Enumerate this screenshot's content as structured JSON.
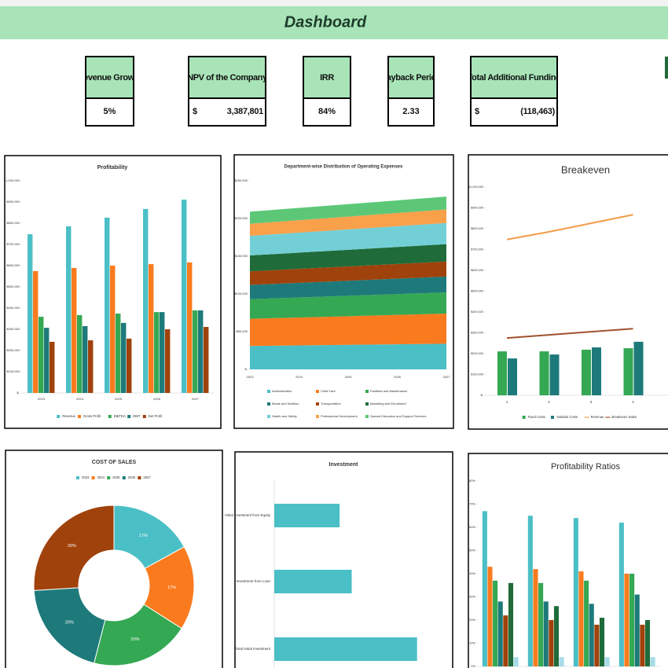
{
  "header": {
    "title": "Dashboard"
  },
  "kpis": [
    {
      "label": "Revenue Growth",
      "value": "5%"
    },
    {
      "label": "NPV of the Company",
      "currency": "$",
      "value": "3,387,801"
    },
    {
      "label": "IRR",
      "value": "84%"
    },
    {
      "label": "Payback Period",
      "value": "2.33"
    },
    {
      "label": "Total Additional Funding",
      "currency": "$",
      "value": "(118,463)"
    }
  ],
  "chart_data": [
    {
      "type": "bar",
      "title": "Profitability",
      "categories": [
        "2023",
        "2024",
        "2025",
        "2026",
        "2027"
      ],
      "series": [
        {
          "name": "Revenue",
          "color": "#4bbfc6",
          "values": [
            748000,
            785000,
            826000,
            867000,
            911000
          ]
        },
        {
          "name": "Gross Profit",
          "color": "#f97b1e",
          "values": [
            574000,
            589000,
            600000,
            607000,
            615000
          ]
        },
        {
          "name": "EBITDA",
          "color": "#34a853",
          "values": [
            359000,
            367000,
            374000,
            381000,
            389000
          ]
        },
        {
          "name": "EBIT",
          "color": "#1e7a7a",
          "values": [
            307000,
            315000,
            330000,
            381000,
            389000
          ]
        },
        {
          "name": "Net Profit",
          "color": "#a0420c",
          "values": [
            241000,
            248000,
            256000,
            300000,
            311000
          ]
        }
      ],
      "ylim": [
        0,
        1000000
      ],
      "yticks": [
        {
          "value": 0,
          "label": "$-"
        },
        {
          "value": 100000,
          "label": "$100,000"
        },
        {
          "value": 200000,
          "label": "$200,000"
        },
        {
          "value": 300000,
          "label": "$300,000"
        },
        {
          "value": 400000,
          "label": "$400,000"
        },
        {
          "value": 500000,
          "label": "$500,000"
        },
        {
          "value": 600000,
          "label": "$600,000"
        },
        {
          "value": 700000,
          "label": "$700,000"
        },
        {
          "value": 800000,
          "label": "$800,000"
        },
        {
          "value": 900000,
          "label": "$900,000"
        },
        {
          "value": 1000000,
          "label": "$1,000,000"
        }
      ]
    },
    {
      "type": "area",
      "title": "Department-wise Distribution of Operating Expenses",
      "categories": [
        "2023",
        "2024",
        "2025",
        "2026",
        "2027"
      ],
      "series": [
        {
          "name": "Administration",
          "color": "#4bbfc6",
          "values": [
            31000,
            31750,
            32500,
            33250,
            34000
          ]
        },
        {
          "name": "Child Care",
          "color": "#f97b1e",
          "values": [
            36000,
            37000,
            38000,
            39000,
            40000
          ]
        },
        {
          "name": "Facilities and Maintenance",
          "color": "#34a853",
          "values": [
            26000,
            26500,
            27000,
            27500,
            28000
          ]
        },
        {
          "name": "Meals and Nutrition",
          "color": "#1e7a7a",
          "values": [
            19000,
            19500,
            20000,
            20500,
            21000
          ]
        },
        {
          "name": "Transportation",
          "color": "#a0420c",
          "values": [
            18000,
            18500,
            19000,
            19500,
            20000
          ]
        },
        {
          "name": "Marketing and Enrollment",
          "color": "#1f6b3a",
          "values": [
            21000,
            21500,
            22000,
            22500,
            23000
          ]
        },
        {
          "name": "Health and Safety",
          "color": "#72cfd6",
          "values": [
            26000,
            26500,
            27000,
            27500,
            28000
          ]
        },
        {
          "name": "Professional Development",
          "color": "#f9a04b",
          "values": [
            16000,
            16500,
            17000,
            17500,
            18000
          ]
        },
        {
          "name": "Special Education and Support Services",
          "color": "#5cc877",
          "values": [
            16000,
            16250,
            16500,
            16750,
            17000
          ]
        }
      ],
      "ylim": [
        0,
        250000
      ],
      "yticks": [
        {
          "value": 0,
          "label": "$-"
        },
        {
          "value": 50000,
          "label": "$50,000"
        },
        {
          "value": 100000,
          "label": "$100,000"
        },
        {
          "value": 150000,
          "label": "$150,000"
        },
        {
          "value": 200000,
          "label": "$200,000"
        },
        {
          "value": 250000,
          "label": "$250,000"
        }
      ]
    },
    {
      "type": "combo",
      "title": "Breakeven",
      "categories": [
        "1",
        "2",
        "3",
        "4"
      ],
      "series": [
        {
          "name": "Fixed Costs",
          "kind": "bar",
          "color": "#34a853",
          "values": [
            211000,
            211000,
            219000,
            226000
          ]
        },
        {
          "name": "Variable Costs",
          "kind": "bar",
          "color": "#1e7a7a",
          "values": [
            177000,
            196000,
            230000,
            257000
          ]
        },
        {
          "name": "Revenue",
          "kind": "line",
          "color": "#f39c4a",
          "values": [
            748000,
            785000,
            826000,
            867000
          ]
        },
        {
          "name": "Breakeven Sales",
          "kind": "line",
          "color": "#a0522d",
          "values": [
            275000,
            290000,
            305000,
            320000
          ]
        }
      ],
      "ylim": [
        0,
        1000000
      ],
      "yticks": [
        {
          "value": 0,
          "label": "$-"
        },
        {
          "value": 100000,
          "label": "$100,000"
        },
        {
          "value": 200000,
          "label": "$200,000"
        },
        {
          "value": 300000,
          "label": "$300,000"
        },
        {
          "value": 400000,
          "label": "$400,000"
        },
        {
          "value": 500000,
          "label": "$500,000"
        },
        {
          "value": 600000,
          "label": "$600,000"
        },
        {
          "value": 700000,
          "label": "$700,000"
        },
        {
          "value": 800000,
          "label": "$800,000"
        },
        {
          "value": 900000,
          "label": "$900,000"
        },
        {
          "value": 1000000,
          "label": "$1,000,000"
        }
      ]
    },
    {
      "type": "donut",
      "title": "COST OF SALES",
      "categories": [
        "2023",
        "2024",
        "2025",
        "2026",
        "2027"
      ],
      "values": [
        17,
        17,
        20,
        20,
        26
      ],
      "value_labels": [
        "17%",
        "17%",
        "20%",
        "20%",
        "26%"
      ],
      "colors": [
        "#4bbfc6",
        "#f97b1e",
        "#34a853",
        "#1e7a7a",
        "#a0420c"
      ]
    },
    {
      "type": "bar",
      "orientation": "horizontal",
      "title": "Investment",
      "categories": [
        "Initial Investment from Equity",
        "Investment from Loan",
        "Total Initial Investment"
      ],
      "values": [
        92,
        109,
        201
      ],
      "color": "#4bbfc6",
      "xlim": [
        0,
        250
      ]
    },
    {
      "type": "bar",
      "title": "Profitability Ratios",
      "categories": [
        null,
        null,
        null,
        null
      ],
      "series": [
        {
          "color": "#4bbfc6",
          "values": [
            67,
            65,
            64,
            62
          ]
        },
        {
          "color": "#f97b1e",
          "values": [
            43,
            42,
            41,
            40
          ]
        },
        {
          "color": "#34a853",
          "values": [
            37,
            36,
            37,
            40
          ]
        },
        {
          "color": "#1e7a7a",
          "values": [
            28,
            28,
            27,
            31
          ]
        },
        {
          "color": "#a0420c",
          "values": [
            22,
            20,
            18,
            18
          ]
        },
        {
          "color": "#1f6b3a",
          "values": [
            36,
            26,
            21,
            20
          ]
        },
        {
          "color": "#a8dbe8",
          "values": [
            4,
            4,
            4,
            4
          ]
        }
      ],
      "ylim": [
        0,
        80
      ],
      "yticks": [
        {
          "value": 0,
          "label": "0%"
        },
        {
          "value": 10,
          "label": "10%"
        },
        {
          "value": 20,
          "label": "20%"
        },
        {
          "value": 30,
          "label": "30%"
        },
        {
          "value": 40,
          "label": "40%"
        },
        {
          "value": 50,
          "label": "50%"
        },
        {
          "value": 60,
          "label": "60%"
        },
        {
          "value": 70,
          "label": "70%"
        },
        {
          "value": 80,
          "label": "80%"
        }
      ]
    }
  ]
}
